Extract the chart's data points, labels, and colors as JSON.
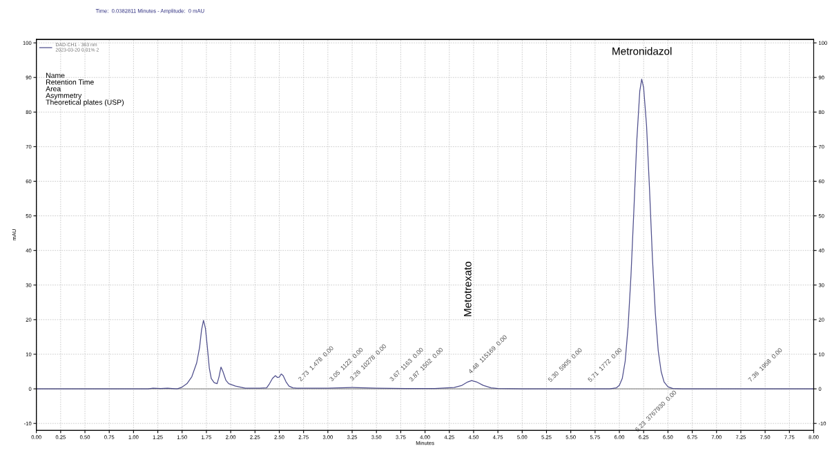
{
  "chart_data": {
    "type": "line",
    "xlabel": "Minutes",
    "ylabel": "mAU",
    "x": [
      0,
      0.5,
      1.0,
      1.15,
      1.2,
      1.28,
      1.35,
      1.45,
      1.5,
      1.55,
      1.6,
      1.65,
      1.68,
      1.7,
      1.72,
      1.74,
      1.76,
      1.78,
      1.8,
      1.83,
      1.86,
      1.88,
      1.9,
      1.92,
      1.95,
      1.98,
      2.05,
      2.15,
      2.3,
      2.37,
      2.4,
      2.43,
      2.46,
      2.48,
      2.5,
      2.52,
      2.54,
      2.57,
      2.6,
      2.64,
      2.68,
      2.8,
      3.0,
      3.25,
      3.5,
      3.8,
      4.1,
      4.3,
      4.38,
      4.44,
      4.48,
      4.53,
      4.6,
      4.68,
      4.75,
      5.0,
      5.5,
      5.9,
      5.97,
      6.0,
      6.03,
      6.06,
      6.09,
      6.12,
      6.15,
      6.18,
      6.21,
      6.23,
      6.25,
      6.28,
      6.31,
      6.34,
      6.37,
      6.4,
      6.43,
      6.46,
      6.5,
      6.55,
      6.65,
      7.0,
      7.5,
      8.0
    ],
    "series": [
      {
        "name": "DAD-CH1 - 363 nm\n2023-03-20 0,01% 2",
        "color": "#4e4e8c",
        "values": [
          0,
          0,
          0,
          0,
          0.2,
          0.1,
          0.2,
          0,
          0.5,
          1.5,
          3.5,
          7.5,
          12,
          17,
          19.8,
          17.5,
          12,
          6,
          3,
          1.8,
          1.5,
          3.5,
          6.3,
          5,
          2.5,
          1.5,
          0.8,
          0.2,
          0.2,
          0.3,
          1.5,
          3,
          3.8,
          3.3,
          3.4,
          4.3,
          3.8,
          2,
          0.8,
          0.3,
          0.2,
          0.2,
          0.2,
          0.4,
          0.2,
          0.1,
          0.1,
          0.4,
          1,
          2,
          2.4,
          2,
          1,
          0.3,
          0.1,
          0,
          0,
          0,
          0.3,
          1,
          3,
          8,
          18,
          33,
          52,
          72,
          86,
          89.5,
          87,
          76,
          58,
          38,
          22,
          11,
          5,
          2,
          0.6,
          0.1,
          0,
          0,
          0,
          0
        ]
      }
    ],
    "xlim": [
      0,
      8
    ],
    "xticks": [
      {
        "value": 0,
        "label": "0.00"
      },
      {
        "value": 0.25,
        "label": "0.25"
      },
      {
        "value": 0.5,
        "label": "0.50"
      },
      {
        "value": 0.75,
        "label": "0.75"
      },
      {
        "value": 1,
        "label": "1.00"
      },
      {
        "value": 1.25,
        "label": "1.25"
      },
      {
        "value": 1.5,
        "label": "1.50"
      },
      {
        "value": 1.75,
        "label": "1.75"
      },
      {
        "value": 2,
        "label": "2.00"
      },
      {
        "value": 2.25,
        "label": "2.25"
      },
      {
        "value": 2.5,
        "label": "2.50"
      },
      {
        "value": 2.75,
        "label": "2.75"
      },
      {
        "value": 3,
        "label": "3.00"
      },
      {
        "value": 3.25,
        "label": "3.25"
      },
      {
        "value": 3.5,
        "label": "3.50"
      },
      {
        "value": 3.75,
        "label": "3.75"
      },
      {
        "value": 4,
        "label": "4.00"
      },
      {
        "value": 4.25,
        "label": "4.25"
      },
      {
        "value": 4.5,
        "label": "4.50"
      },
      {
        "value": 4.75,
        "label": "4.75"
      },
      {
        "value": 5,
        "label": "5.00"
      },
      {
        "value": 5.25,
        "label": "5.25"
      },
      {
        "value": 5.5,
        "label": "5.50"
      },
      {
        "value": 5.75,
        "label": "5.75"
      },
      {
        "value": 6,
        "label": "6.00"
      },
      {
        "value": 6.25,
        "label": "6.25"
      },
      {
        "value": 6.5,
        "label": "6.50"
      },
      {
        "value": 6.75,
        "label": "6.75"
      },
      {
        "value": 7,
        "label": "7.00"
      },
      {
        "value": 7.25,
        "label": "7.25"
      },
      {
        "value": 7.5,
        "label": "7.50"
      },
      {
        "value": 7.75,
        "label": "7.75"
      },
      {
        "value": 8,
        "label": "8.00"
      }
    ],
    "ylim": [
      -12,
      101
    ],
    "yticks": [
      -10,
      0,
      10,
      20,
      30,
      40,
      50,
      60,
      70,
      80,
      90,
      100
    ],
    "y2lim": [
      -12,
      101
    ],
    "y2ticks": [
      -10,
      0,
      10,
      20,
      30,
      40,
      50,
      60,
      70,
      80,
      90,
      100
    ],
    "grid": true,
    "legend": "top left",
    "line_style": "solid",
    "annotations": [
      "Time:  0.0382811 Minutes - Amplitude:  0 mAU",
      "Name\nRetention Time\nArea\nAsymmetry\nTheoretical plates (USP)",
      {
        "text": "2.73  1.478  0.00",
        "x": 2.73,
        "y": 0.2
      },
      {
        "text": "3.05  1122  0.00",
        "x": 3.05,
        "y": 0.2
      },
      {
        "text": "3.26  10278  0.00",
        "x": 3.26,
        "y": 0.4
      },
      {
        "text": "3.67  1163  0.00",
        "x": 3.67,
        "y": 0.2
      },
      {
        "text": "3.87  1502  0.00",
        "x": 3.87,
        "y": 0.1
      },
      {
        "text": "4.48  115169  0.00",
        "x": 4.48,
        "y": 2.4
      },
      {
        "text": "5.30  5905  0.00",
        "x": 5.3,
        "y": 0
      },
      {
        "text": "5.71  1772  0.00",
        "x": 5.71,
        "y": 0
      },
      {
        "text": "6.23  3767930  0.00",
        "x": 6.58,
        "y": -0.3
      },
      {
        "text": "7.36  1958  0.00",
        "x": 7.36,
        "y": 0
      },
      "Metotrexato",
      "Metronidazol"
    ]
  }
}
